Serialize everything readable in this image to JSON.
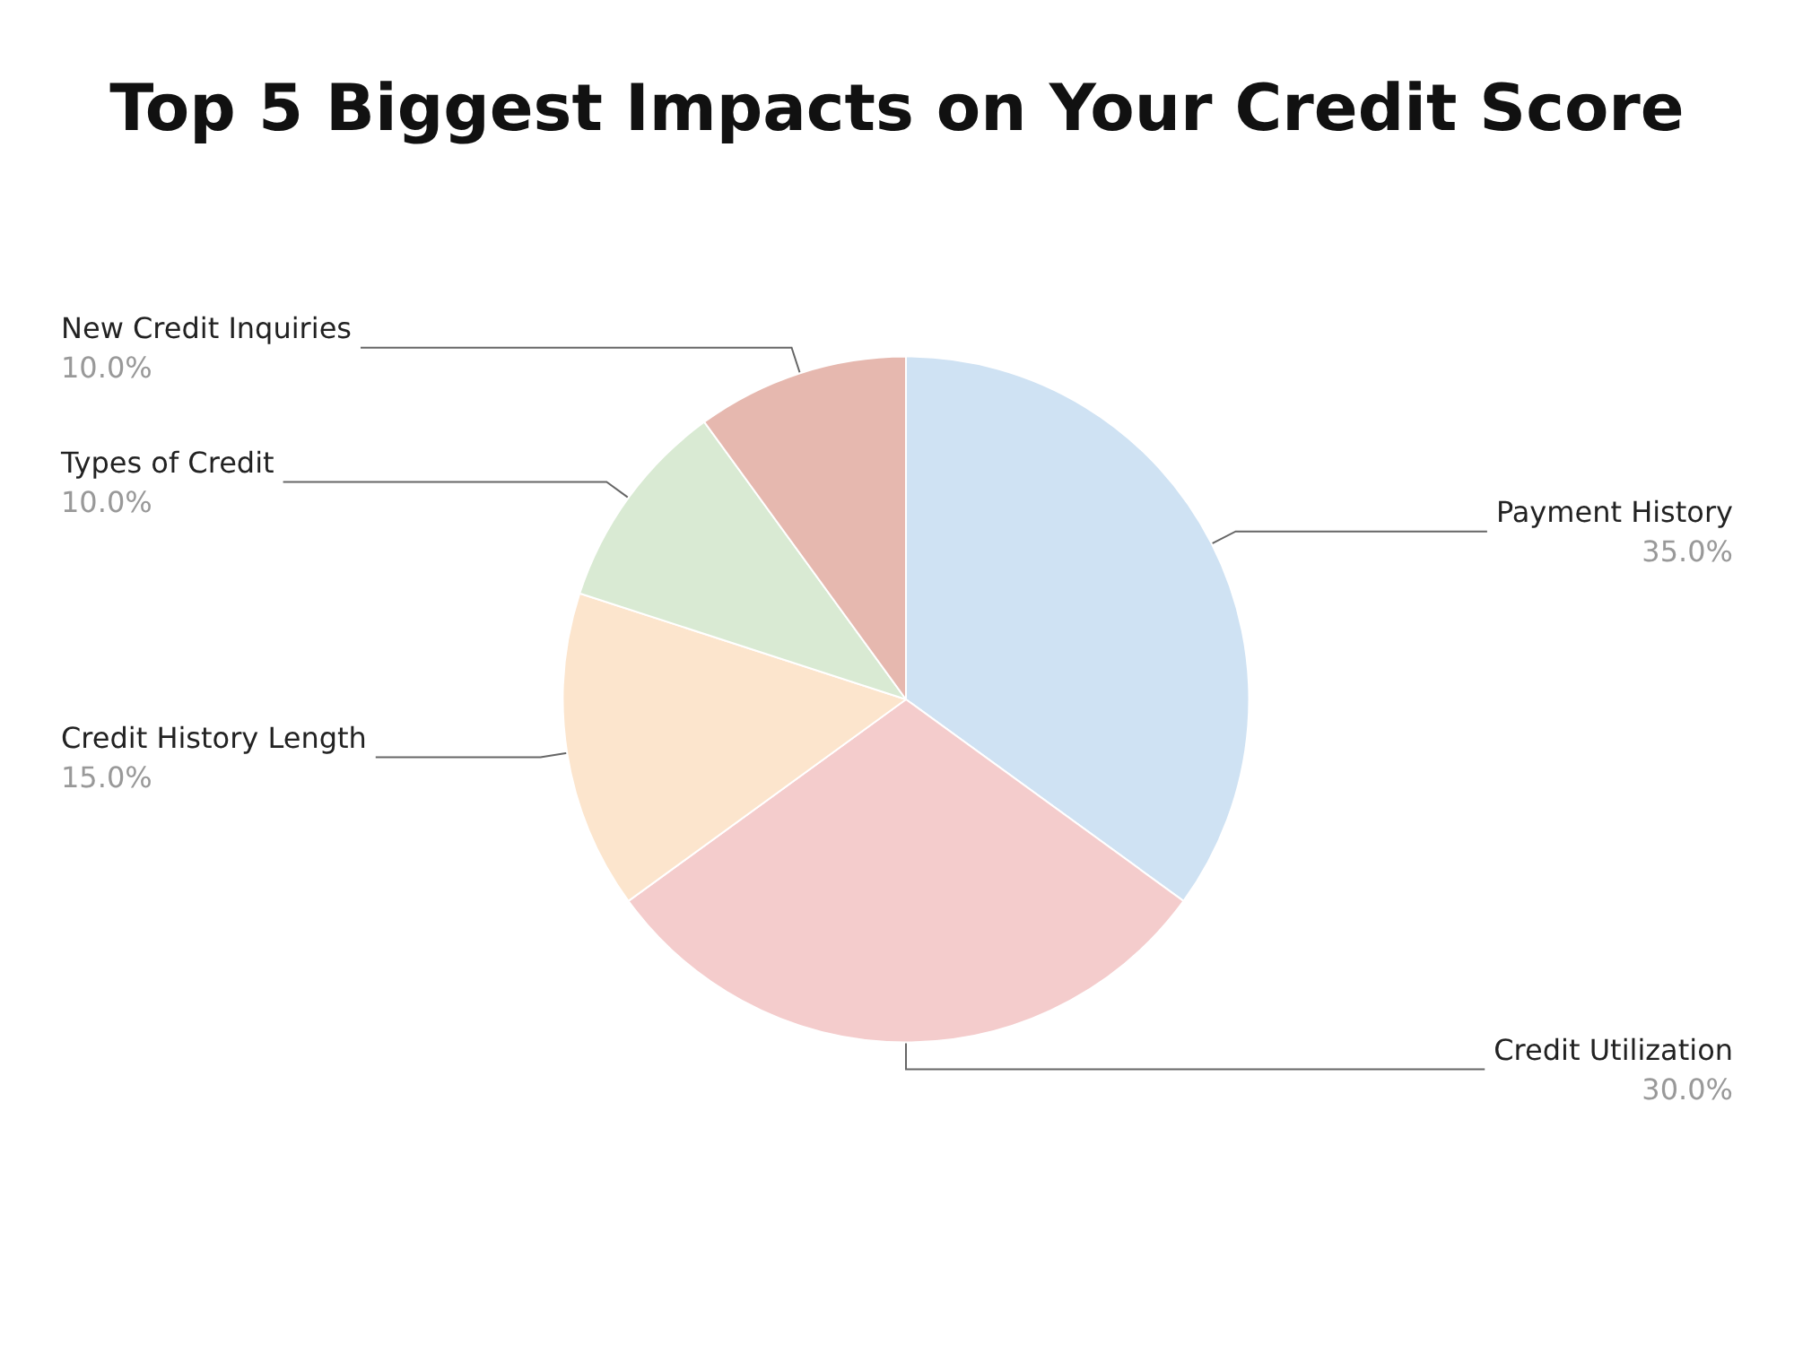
{
  "chart_data": {
    "type": "pie",
    "title": "Top 5 Biggest Impacts on Your Credit Score",
    "categories": [
      "Payment History",
      "Credit Utilization",
      "Credit History Length",
      "Types of Credit",
      "New Credit Inquiries"
    ],
    "values": [
      35,
      30,
      15,
      10,
      10
    ],
    "colors": [
      "#cfe2f3",
      "#f4cccc",
      "#fce5cd",
      "#d9ead3",
      "#e6b8af"
    ],
    "value_labels": [
      "35.0%",
      "30.0%",
      "15.0%",
      "10.0%",
      "10.0%"
    ],
    "legend": false
  }
}
